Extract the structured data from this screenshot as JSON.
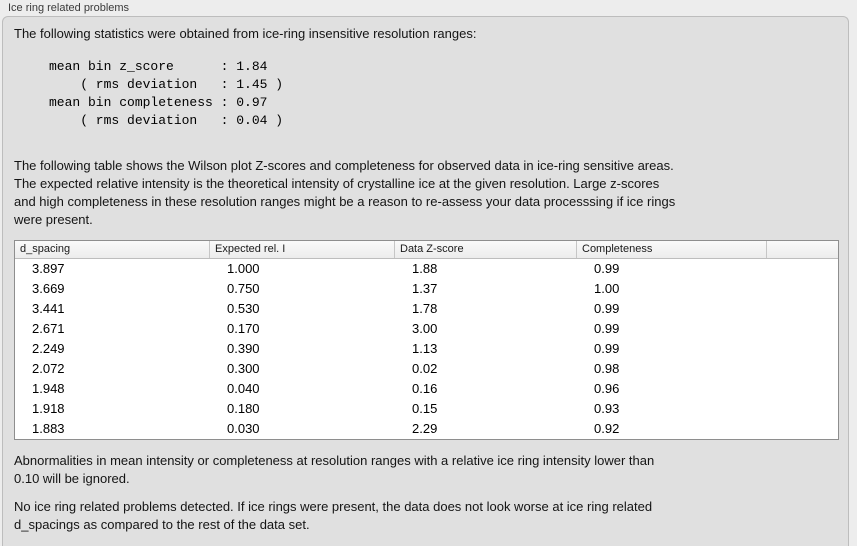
{
  "panel": {
    "title": "Ice ring related problems",
    "intro": "The following statistics were obtained from ice-ring insensitive resolution ranges:",
    "stats_block": "mean bin z_score      : 1.84\n    ( rms deviation   : 1.45 )\nmean bin completeness : 0.97\n    ( rms deviation   : 0.04 )",
    "stats": {
      "mean_bin_z_score": "1.84",
      "z_score_rms_deviation": "1.45",
      "mean_bin_completeness": "0.97",
      "completeness_rms_deviation": "0.04"
    },
    "table_description": "The following table shows the Wilson plot Z-scores and completeness for observed data in ice-ring sensitive areas.\nThe expected relative intensity is the theoretical intensity of crystalline ice at the given resolution. Large z-scores\nand high completeness in these resolution ranges might be a reason to re-assess your data processsing if ice rings\nwere present.",
    "note_ignored": "Abnormalities in mean intensity or completeness at resolution ranges with a relative ice ring intensity lower than\n0.10 will be ignored.",
    "conclusion": "No ice ring related problems detected. If ice rings were present, the data does not look worse at ice ring related\nd_spacings as compared to the rest of the data set."
  },
  "table": {
    "columns": [
      "d_spacing",
      "Expected rel. I",
      "Data Z-score",
      "Completeness",
      ""
    ],
    "rows": [
      [
        "3.897",
        "1.000",
        "1.88",
        "0.99"
      ],
      [
        "3.669",
        "0.750",
        "1.37",
        "1.00"
      ],
      [
        "3.441",
        "0.530",
        "1.78",
        "0.99"
      ],
      [
        "2.671",
        "0.170",
        "3.00",
        "0.99"
      ],
      [
        "2.249",
        "0.390",
        "1.13",
        "0.99"
      ],
      [
        "2.072",
        "0.300",
        "0.02",
        "0.98"
      ],
      [
        "1.948",
        "0.040",
        "0.16",
        "0.96"
      ],
      [
        "1.918",
        "0.180",
        "0.15",
        "0.93"
      ],
      [
        "1.883",
        "0.030",
        "2.29",
        "0.92"
      ]
    ]
  },
  "colors": {
    "outer_background": "#ededed",
    "panel_background": "#e0e0e0",
    "panel_border": "#bdbdbd",
    "table_background": "#ffffff",
    "table_border": "#8e8e8e",
    "header_gradient_top": "#fafafa",
    "header_gradient_bottom": "#ececec",
    "text": "#141414"
  }
}
